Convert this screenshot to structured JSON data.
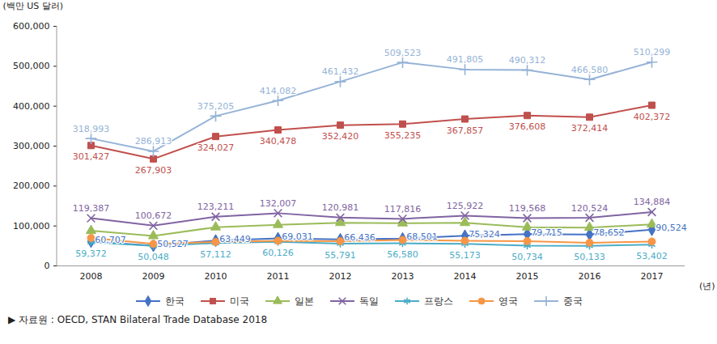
{
  "chart_data": {
    "type": "line",
    "y_label": "(백만 US 달러)",
    "x_label": "(년)",
    "source": "▶ 자료원 : OECD, STAN Bilateral Trade Database 2018",
    "categories": [
      "2008",
      "2009",
      "2010",
      "2011",
      "2012",
      "2013",
      "2014",
      "2015",
      "2016",
      "2017"
    ],
    "ylim": [
      0,
      600000
    ],
    "yticks": [
      0,
      {
        "value": 100000,
        "label": "100,000"
      },
      {
        "value": 200000,
        "label": "200,000"
      },
      {
        "value": 300000,
        "label": "300,000"
      },
      {
        "value": 400000,
        "label": "400,000"
      },
      {
        "value": 500000,
        "label": "500,000"
      },
      {
        "value": 600000,
        "label": "600,000"
      }
    ],
    "grid": false,
    "legend": "bottom",
    "series": [
      {
        "name": "한국",
        "color": "#4472c4",
        "marker": "diamond",
        "data_labels": true,
        "values": [
          60707,
          50527,
          63449,
          69031,
          66436,
          68501,
          75324,
          79715,
          78652,
          90524
        ],
        "value_labels": [
          "60,707",
          "50,527",
          "63,449",
          "69,031",
          "66,436",
          "68,501",
          "75,324",
          "79,715",
          "78,652",
          "90,524"
        ]
      },
      {
        "name": "미국",
        "color": "#c0504d",
        "marker": "square",
        "data_labels": true,
        "values": [
          301427,
          267903,
          324027,
          340478,
          352420,
          355235,
          367857,
          376608,
          372414,
          402372
        ],
        "value_labels": [
          "301,427",
          "267,903",
          "324,027",
          "340,478",
          "352,420",
          "355,235",
          "367,857",
          "376,608",
          "372,414",
          "402,372"
        ]
      },
      {
        "name": "일본",
        "color": "#9bbb59",
        "marker": "triangle",
        "data_labels": false,
        "values": [
          88000,
          75000,
          97000,
          103000,
          108000,
          107000,
          108000,
          97000,
          96000,
          104000
        ]
      },
      {
        "name": "독일",
        "color": "#8064a2",
        "marker": "times",
        "data_labels": true,
        "values": [
          119387,
          100672,
          123211,
          132007,
          120981,
          117816,
          125922,
          119568,
          120524,
          134884
        ],
        "value_labels": [
          "119,387",
          "100,672",
          "123,211",
          "132,007",
          "120,981",
          "117,816",
          "125,922",
          "119,568",
          "120,524",
          "134,884"
        ]
      },
      {
        "name": "프랑스",
        "color": "#4bacc6",
        "marker": "asterisk",
        "data_labels": true,
        "values": [
          59372,
          50048,
          57112,
          60126,
          55791,
          56580,
          55173,
          50734,
          50133,
          53402
        ],
        "value_labels": [
          "59,372",
          "50,048",
          "57,112",
          "60,126",
          "55,791",
          "56,580",
          "55,173",
          "50,734",
          "50,133",
          "53,402"
        ]
      },
      {
        "name": "영국",
        "color": "#f79646",
        "marker": "circle",
        "data_labels": false,
        "values": [
          70000,
          55000,
          60000,
          63000,
          62000,
          65000,
          63000,
          62000,
          58000,
          61000
        ]
      },
      {
        "name": "중국",
        "color": "#95b3d7",
        "marker": "plus",
        "data_labels": true,
        "values": [
          318993,
          286913,
          375205,
          414082,
          461432,
          509523,
          491805,
          490312,
          466580,
          510299
        ],
        "value_labels": [
          "318,993",
          "286,913",
          "375,205",
          "414,082",
          "461,432",
          "509,523",
          "491,805",
          "490,312",
          "466,580",
          "510,299"
        ]
      }
    ]
  }
}
